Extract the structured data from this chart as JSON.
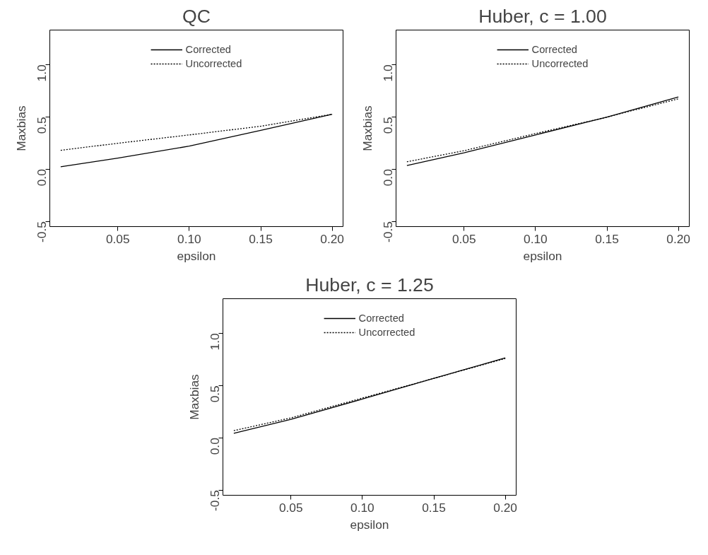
{
  "chart_data": [
    {
      "type": "line",
      "title": "QC",
      "xlabel": "epsilon",
      "ylabel": "Maxbias",
      "x": [
        0.01,
        0.05,
        0.1,
        0.15,
        0.2
      ],
      "xlim": [
        0.0024,
        0.2076
      ],
      "xticks": [
        {
          "value": 0.05,
          "label": "0.05"
        },
        {
          "value": 0.1,
          "label": "0.10"
        },
        {
          "value": 0.15,
          "label": "0.15"
        },
        {
          "value": 0.2,
          "label": "0.20"
        }
      ],
      "ylim": [
        -0.55,
        1.33
      ],
      "yticks": [
        {
          "value": -0.5,
          "label": "-0.5"
        },
        {
          "value": 0,
          "label": "0.0"
        },
        {
          "value": 0.5,
          "label": "0.5"
        },
        {
          "value": 1,
          "label": "1.0"
        }
      ],
      "grid": false,
      "legend": "top",
      "marker": "none",
      "series": [
        {
          "name": "Corrected",
          "color": "#000000",
          "line_style": "solid",
          "values": [
            0.023,
            0.105,
            0.22,
            0.37,
            0.525
          ]
        },
        {
          "name": "Uncorrected",
          "color": "#000000",
          "line_style": "dotted",
          "values": [
            0.18,
            0.247,
            0.327,
            0.41,
            0.525
          ]
        }
      ]
    },
    {
      "type": "line",
      "title": "Huber, c = 1.00",
      "xlabel": "epsilon",
      "ylabel": "Maxbias",
      "x": [
        0.01,
        0.05,
        0.1,
        0.15,
        0.2
      ],
      "xlim": [
        0.0024,
        0.2076
      ],
      "xticks": [
        {
          "value": 0.05,
          "label": "0.05"
        },
        {
          "value": 0.1,
          "label": "0.10"
        },
        {
          "value": 0.15,
          "label": "0.15"
        },
        {
          "value": 0.2,
          "label": "0.20"
        }
      ],
      "ylim": [
        -0.55,
        1.33
      ],
      "yticks": [
        {
          "value": -0.5,
          "label": "-0.5"
        },
        {
          "value": 0,
          "label": "0.0"
        },
        {
          "value": 0.5,
          "label": "0.5"
        },
        {
          "value": 1,
          "label": "1.0"
        }
      ],
      "grid": false,
      "legend": "top",
      "marker": "none",
      "series": [
        {
          "name": "Corrected",
          "color": "#000000",
          "line_style": "solid",
          "values": [
            0.034,
            0.156,
            0.327,
            0.497,
            0.69
          ]
        },
        {
          "name": "Uncorrected",
          "color": "#000000",
          "line_style": "dotted",
          "values": [
            0.07,
            0.176,
            0.34,
            0.497,
            0.673
          ]
        }
      ]
    },
    {
      "type": "line",
      "title": "Huber, c = 1.25",
      "xlabel": "epsilon",
      "ylabel": "Maxbias",
      "x": [
        0.01,
        0.05,
        0.1,
        0.15,
        0.2
      ],
      "xlim": [
        0.0024,
        0.2076
      ],
      "xticks": [
        {
          "value": 0.05,
          "label": "0.05"
        },
        {
          "value": 0.1,
          "label": "0.10"
        },
        {
          "value": 0.15,
          "label": "0.15"
        },
        {
          "value": 0.2,
          "label": "0.20"
        }
      ],
      "ylim": [
        -0.55,
        1.33
      ],
      "yticks": [
        {
          "value": -0.5,
          "label": "-0.5"
        },
        {
          "value": 0,
          "label": "0.0"
        },
        {
          "value": 0.5,
          "label": "0.5"
        },
        {
          "value": 1,
          "label": "1.0"
        }
      ],
      "grid": false,
      "legend": "top",
      "marker": "none",
      "series": [
        {
          "name": "Corrected",
          "color": "#000000",
          "line_style": "solid",
          "values": [
            0.043,
            0.176,
            0.37,
            0.568,
            0.764
          ]
        },
        {
          "name": "Uncorrected",
          "color": "#000000",
          "line_style": "dotted",
          "values": [
            0.068,
            0.19,
            0.38,
            0.568,
            0.758
          ]
        }
      ]
    }
  ]
}
